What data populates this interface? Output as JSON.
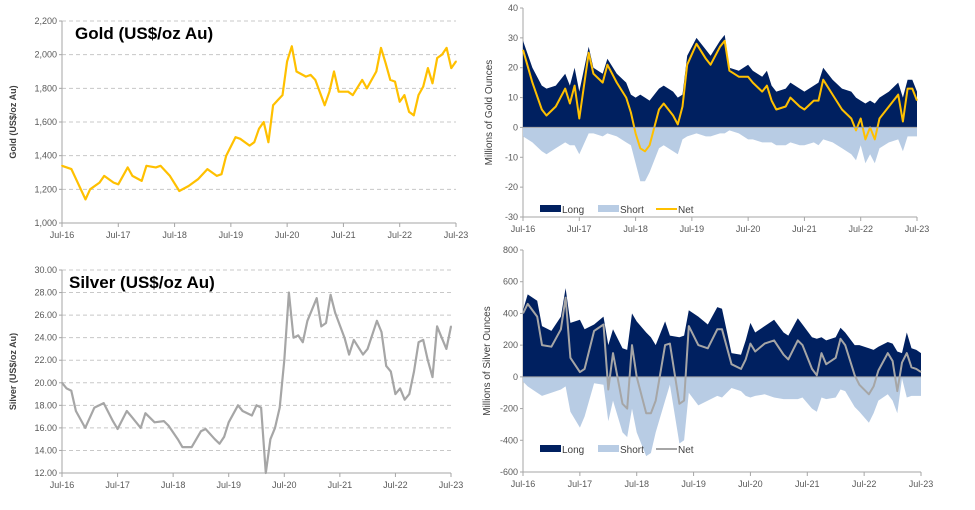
{
  "chart_data": [
    {
      "type": "line",
      "title": "Gold (US$/oz Au)",
      "ylabel": "Gold (US$/oz Au)",
      "xlabel": "",
      "ylim": [
        1000,
        2200
      ],
      "xlim": [
        "2016-07",
        "2023-07"
      ],
      "grid": true,
      "color": "#FFC000",
      "x_ticks": [
        "Jul-16",
        "Jul-17",
        "Jul-18",
        "Jul-19",
        "Jul-20",
        "Jul-21",
        "Jul-22",
        "Jul-23"
      ],
      "y_ticks": [
        {
          "v": 1000,
          "label": "1,000"
        },
        {
          "v": 1200,
          "label": "1,200"
        },
        {
          "v": 1400,
          "label": "1,400"
        },
        {
          "v": 1600,
          "label": "1,600"
        },
        {
          "v": 1800,
          "label": "1,800"
        },
        {
          "v": 2000,
          "label": "2,000"
        },
        {
          "v": 2200,
          "label": "2,200"
        }
      ],
      "series": [
        {
          "x": [
            "2016-07",
            "2016-09",
            "2016-10",
            "2016-12",
            "2017-01",
            "2017-03",
            "2017-04",
            "2017-06",
            "2017-07",
            "2017-09",
            "2017-10",
            "2017-12",
            "2018-01",
            "2018-03",
            "2018-04",
            "2018-06",
            "2018-08",
            "2018-10",
            "2018-12",
            "2019-02",
            "2019-04",
            "2019-05",
            "2019-06",
            "2019-08",
            "2019-09",
            "2019-11",
            "2019-12",
            "2020-01",
            "2020-02",
            "2020-03",
            "2020-04",
            "2020-05",
            "2020-06",
            "2020-07",
            "2020-08",
            "2020-09",
            "2020-11",
            "2020-12",
            "2021-01",
            "2021-03",
            "2021-04",
            "2021-05",
            "2021-06",
            "2021-08",
            "2021-09",
            "2021-11",
            "2021-12",
            "2022-02",
            "2022-03",
            "2022-04",
            "2022-05",
            "2022-06",
            "2022-07",
            "2022-08",
            "2022-09",
            "2022-10",
            "2022-11",
            "2022-12",
            "2023-01",
            "2023-02",
            "2023-03",
            "2023-04",
            "2023-05",
            "2023-06",
            "2023-07"
          ],
          "values": [
            1340,
            1320,
            1260,
            1140,
            1200,
            1240,
            1280,
            1240,
            1230,
            1330,
            1280,
            1250,
            1340,
            1330,
            1340,
            1280,
            1190,
            1220,
            1260,
            1320,
            1280,
            1290,
            1400,
            1510,
            1500,
            1460,
            1480,
            1560,
            1600,
            1480,
            1700,
            1730,
            1760,
            1960,
            2050,
            1900,
            1870,
            1880,
            1850,
            1700,
            1780,
            1900,
            1780,
            1780,
            1760,
            1850,
            1800,
            1900,
            2040,
            1950,
            1850,
            1840,
            1720,
            1760,
            1660,
            1640,
            1760,
            1810,
            1920,
            1830,
            1980,
            2000,
            2040,
            1920,
            1960
          ]
        }
      ]
    },
    {
      "type": "area",
      "title": "",
      "ylabel": "Millions of Gold Ounces",
      "xlabel": "",
      "ylim": [
        -30,
        40
      ],
      "xlim": [
        "2016-07",
        "2023-07"
      ],
      "grid": false,
      "legend": "bottom-left",
      "x_ticks": [
        "Jul-16",
        "Jul-17",
        "Jul-18",
        "Jul-19",
        "Jul-20",
        "Jul-21",
        "Jul-22",
        "Jul-23"
      ],
      "y_ticks": [
        {
          "v": -30,
          "label": "-30"
        },
        {
          "v": -20,
          "label": "-20"
        },
        {
          "v": -10,
          "label": "-10"
        },
        {
          "v": 0,
          "label": "0"
        },
        {
          "v": 10,
          "label": "10"
        },
        {
          "v": 20,
          "label": "20"
        },
        {
          "v": 30,
          "label": "30"
        },
        {
          "v": 40,
          "label": "40"
        }
      ],
      "x": [
        "2016-07",
        "2016-09",
        "2016-11",
        "2016-12",
        "2017-02",
        "2017-04",
        "2017-05",
        "2017-06",
        "2017-07",
        "2017-09",
        "2017-10",
        "2017-12",
        "2018-01",
        "2018-03",
        "2018-05",
        "2018-06",
        "2018-07",
        "2018-08",
        "2018-09",
        "2018-10",
        "2018-12",
        "2019-01",
        "2019-03",
        "2019-04",
        "2019-05",
        "2019-06",
        "2019-08",
        "2019-10",
        "2019-11",
        "2020-01",
        "2020-02",
        "2020-03",
        "2020-05",
        "2020-07",
        "2020-08",
        "2020-10",
        "2020-11",
        "2020-12",
        "2021-01",
        "2021-03",
        "2021-04",
        "2021-06",
        "2021-07",
        "2021-09",
        "2021-10",
        "2021-11",
        "2022-01",
        "2022-03",
        "2022-05",
        "2022-06",
        "2022-07",
        "2022-08",
        "2022-09",
        "2022-10",
        "2022-11",
        "2023-01",
        "2023-03",
        "2023-04",
        "2023-05",
        "2023-06",
        "2023-07"
      ],
      "series": [
        {
          "name": "Long",
          "kind": "area",
          "color": "#002060",
          "values": [
            29,
            20,
            14,
            13,
            14,
            18,
            14,
            20,
            12,
            27,
            20,
            18,
            23,
            18,
            15,
            11,
            10,
            11,
            10,
            9,
            13,
            14,
            12,
            10,
            11,
            24,
            30,
            26,
            24,
            29,
            31,
            20,
            19,
            21,
            19,
            17,
            19,
            14,
            12,
            13,
            15,
            13,
            12,
            14,
            15,
            20,
            16,
            13,
            12,
            10,
            9,
            8,
            9,
            8,
            10,
            12,
            15,
            10,
            16,
            16,
            12
          ]
        },
        {
          "name": "Short",
          "kind": "area",
          "color": "#B8CCE4",
          "values": [
            -3,
            -5,
            -8,
            -9,
            -7,
            -5,
            -6,
            -6,
            -9,
            -2,
            -2,
            -3,
            -2,
            -3,
            -5,
            -6,
            -12,
            -18,
            -18,
            -15,
            -7,
            -6,
            -8,
            -9,
            -4,
            -3,
            -2,
            -3,
            -3,
            -2,
            -2,
            -1,
            -2,
            -4,
            -4,
            -5,
            -5,
            -5,
            -6,
            -6,
            -5,
            -6,
            -6,
            -5,
            -6,
            -4,
            -5,
            -7,
            -9,
            -11,
            -6,
            -12,
            -9,
            -12,
            -7,
            -5,
            -4,
            -8,
            -3,
            -3,
            -3
          ]
        },
        {
          "name": "Net",
          "kind": "line",
          "color": "#FFC000",
          "values": [
            26,
            15,
            6,
            4,
            7,
            13,
            8,
            14,
            3,
            25,
            18,
            15,
            21,
            15,
            10,
            5,
            -2,
            -7,
            -8,
            -6,
            6,
            8,
            4,
            1,
            7,
            21,
            28,
            23,
            21,
            27,
            29,
            19,
            17,
            17,
            15,
            12,
            14,
            9,
            6,
            7,
            10,
            7,
            6,
            9,
            9,
            16,
            11,
            6,
            3,
            -1,
            3,
            -4,
            0,
            -4,
            3,
            7,
            11,
            2,
            13,
            13,
            9
          ]
        }
      ]
    },
    {
      "type": "line",
      "title": "Silver (US$/oz Au)",
      "ylabel": "Silver (US$/oz Au)",
      "xlabel": "",
      "ylim": [
        12,
        30
      ],
      "xlim": [
        "2016-07",
        "2023-07"
      ],
      "grid": true,
      "color": "#A6A6A6",
      "x_ticks": [
        "Jul-16",
        "Jul-17",
        "Jul-18",
        "Jul-19",
        "Jul-20",
        "Jul-21",
        "Jul-22",
        "Jul-23"
      ],
      "y_ticks": [
        {
          "v": 12,
          "label": "12.00"
        },
        {
          "v": 14,
          "label": "14.00"
        },
        {
          "v": 16,
          "label": "16.00"
        },
        {
          "v": 18,
          "label": "18.00"
        },
        {
          "v": 20,
          "label": "20.00"
        },
        {
          "v": 22,
          "label": "22.00"
        },
        {
          "v": 24,
          "label": "24.00"
        },
        {
          "v": 26,
          "label": "26.00"
        },
        {
          "v": 28,
          "label": "28.00"
        },
        {
          "v": 30,
          "label": "30.00"
        }
      ],
      "series": [
        {
          "x": [
            "2016-07",
            "2016-08",
            "2016-09",
            "2016-10",
            "2016-12",
            "2017-02",
            "2017-04",
            "2017-06",
            "2017-07",
            "2017-09",
            "2017-10",
            "2017-12",
            "2018-01",
            "2018-03",
            "2018-05",
            "2018-06",
            "2018-08",
            "2018-09",
            "2018-11",
            "2019-01",
            "2019-02",
            "2019-04",
            "2019-05",
            "2019-06",
            "2019-07",
            "2019-09",
            "2019-10",
            "2019-12",
            "2020-01",
            "2020-02",
            "2020-03",
            "2020-04",
            "2020-05",
            "2020-06",
            "2020-07",
            "2020-08",
            "2020-09",
            "2020-10",
            "2020-11",
            "2020-12",
            "2021-02",
            "2021-03",
            "2021-04",
            "2021-05",
            "2021-06",
            "2021-08",
            "2021-09",
            "2021-10",
            "2021-12",
            "2022-01",
            "2022-03",
            "2022-04",
            "2022-05",
            "2022-06",
            "2022-07",
            "2022-08",
            "2022-09",
            "2022-10",
            "2022-11",
            "2022-12",
            "2023-01",
            "2023-02",
            "2023-03",
            "2023-04",
            "2023-05",
            "2023-06",
            "2023-07"
          ],
          "values": [
            20.0,
            19.5,
            19.3,
            17.5,
            16.0,
            17.8,
            18.2,
            16.6,
            15.9,
            17.5,
            17.0,
            16.0,
            17.3,
            16.5,
            16.6,
            16.2,
            15.0,
            14.3,
            14.3,
            15.7,
            15.9,
            15.0,
            14.6,
            15.2,
            16.5,
            18.0,
            17.5,
            17.1,
            18.0,
            17.8,
            12.0,
            15.0,
            16.0,
            17.8,
            22.0,
            28.0,
            24.0,
            24.2,
            23.6,
            25.5,
            27.5,
            25.0,
            25.3,
            27.8,
            26.2,
            24.0,
            22.5,
            23.8,
            22.5,
            23.0,
            25.5,
            24.5,
            21.5,
            21.0,
            19.0,
            19.5,
            18.5,
            19.0,
            21.0,
            23.6,
            23.8,
            22.0,
            20.5,
            25.0,
            24.0,
            23.0,
            25.0
          ]
        }
      ]
    },
    {
      "type": "area",
      "title": "",
      "ylabel": "Millions of Silver Ounces",
      "xlabel": "",
      "ylim": [
        -600,
        800
      ],
      "xlim": [
        "2016-07",
        "2023-07"
      ],
      "grid": false,
      "legend": "bottom-left",
      "x_ticks": [
        "Jul-16",
        "Jul-17",
        "Jul-18",
        "Jul-19",
        "Jul-20",
        "Jul-21",
        "Jul-22",
        "Jul-23"
      ],
      "y_ticks": [
        {
          "v": -600,
          "label": "-600"
        },
        {
          "v": -400,
          "label": "-400"
        },
        {
          "v": -200,
          "label": "-200"
        },
        {
          "v": 0,
          "label": "0"
        },
        {
          "v": 200,
          "label": "200"
        },
        {
          "v": 400,
          "label": "400"
        },
        {
          "v": 600,
          "label": "600"
        },
        {
          "v": 800,
          "label": "800"
        }
      ],
      "x": [
        "2016-07",
        "2016-08",
        "2016-10",
        "2016-11",
        "2017-01",
        "2017-03",
        "2017-04",
        "2017-05",
        "2017-07",
        "2017-08",
        "2017-10",
        "2017-12",
        "2018-01",
        "2018-02",
        "2018-04",
        "2018-05",
        "2018-06",
        "2018-07",
        "2018-09",
        "2018-10",
        "2018-11",
        "2019-01",
        "2019-02",
        "2019-04",
        "2019-05",
        "2019-06",
        "2019-08",
        "2019-10",
        "2019-12",
        "2020-01",
        "2020-03",
        "2020-05",
        "2020-06",
        "2020-07",
        "2020-08",
        "2020-10",
        "2020-12",
        "2021-02",
        "2021-03",
        "2021-05",
        "2021-06",
        "2021-08",
        "2021-09",
        "2021-10",
        "2021-11",
        "2022-01",
        "2022-02",
        "2022-03",
        "2022-05",
        "2022-06",
        "2022-08",
        "2022-09",
        "2022-10",
        "2022-12",
        "2023-01",
        "2023-02",
        "2023-03",
        "2023-04",
        "2023-05",
        "2023-06",
        "2023-07"
      ],
      "series": [
        {
          "name": "Long",
          "kind": "area",
          "color": "#002060",
          "values": [
            420,
            520,
            480,
            320,
            290,
            380,
            560,
            340,
            360,
            300,
            330,
            380,
            200,
            300,
            180,
            170,
            400,
            350,
            280,
            250,
            200,
            350,
            260,
            250,
            260,
            420,
            380,
            330,
            440,
            430,
            150,
            140,
            230,
            340,
            280,
            320,
            360,
            280,
            260,
            370,
            330,
            250,
            240,
            250,
            230,
            250,
            310,
            280,
            200,
            200,
            180,
            170,
            190,
            220,
            210,
            160,
            150,
            280,
            180,
            170,
            150
          ]
        },
        {
          "name": "Short",
          "kind": "area",
          "color": "#B8CCE4",
          "values": [
            -30,
            -60,
            -100,
            -120,
            -100,
            -80,
            -60,
            -220,
            -320,
            -250,
            -40,
            -50,
            -280,
            -150,
            -350,
            -380,
            -200,
            -350,
            -500,
            -480,
            -350,
            -150,
            -50,
            -420,
            -400,
            -100,
            -180,
            -150,
            -120,
            -130,
            -70,
            -90,
            -120,
            -130,
            -120,
            -110,
            -130,
            -140,
            -140,
            -140,
            -130,
            -200,
            -220,
            -130,
            -140,
            -130,
            -80,
            -90,
            -190,
            -220,
            -290,
            -230,
            -150,
            -110,
            -150,
            -230,
            -10,
            -130,
            -120,
            -120,
            -120
          ]
        },
        {
          "name": "Net",
          "kind": "line",
          "color": "#A6A6A6",
          "values": [
            400,
            460,
            380,
            200,
            190,
            300,
            500,
            120,
            30,
            50,
            290,
            330,
            -80,
            150,
            -170,
            -200,
            200,
            0,
            -230,
            -230,
            -150,
            200,
            210,
            -170,
            -150,
            320,
            200,
            180,
            300,
            300,
            80,
            50,
            110,
            210,
            160,
            210,
            230,
            140,
            110,
            230,
            200,
            50,
            10,
            150,
            80,
            120,
            240,
            200,
            10,
            -50,
            -110,
            -60,
            40,
            150,
            100,
            -90,
            90,
            150,
            60,
            50,
            30
          ]
        }
      ]
    }
  ]
}
